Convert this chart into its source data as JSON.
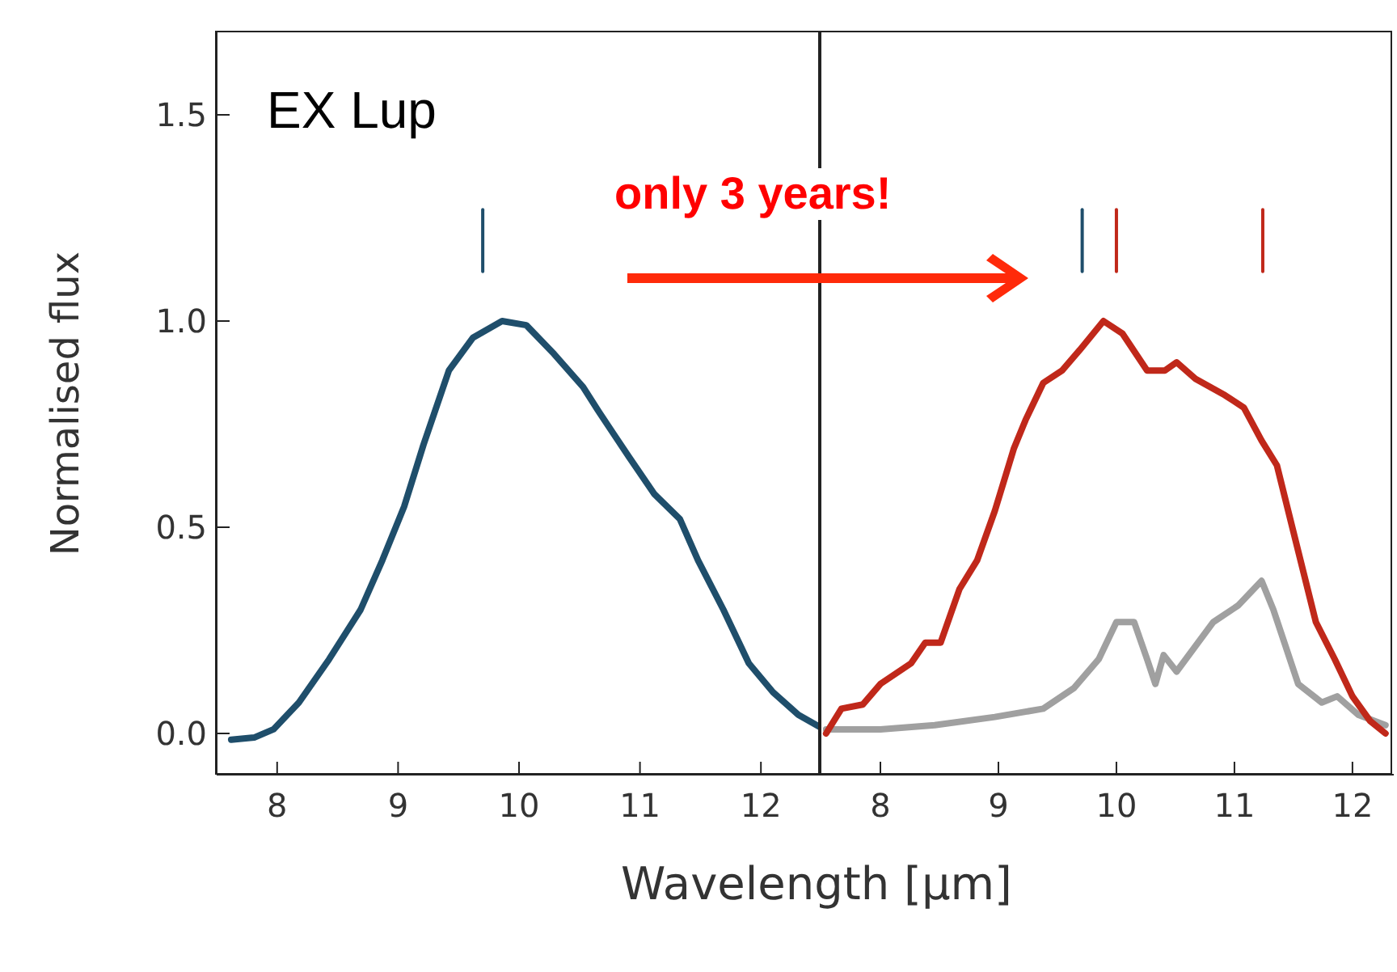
{
  "chart_data": [
    {
      "type": "line",
      "xlabel": "Wavelength [μm]",
      "ylabel": "Normalised flux",
      "annotations": [
        "EX Lup",
        "only 3 years!"
      ],
      "xlim": [
        7.5,
        12.5
      ],
      "xticks": [
        8,
        9,
        10,
        11,
        12
      ],
      "ylim": [
        -0.1,
        1.7
      ],
      "yticks": [
        {
          "value": 0,
          "label": "0.0"
        },
        0.5,
        {
          "value": 1,
          "label": "1.0"
        },
        1.5
      ],
      "grid": false,
      "legend": false,
      "series": [
        {
          "color": "#1f4e6b",
          "x": [
            7.62,
            7.81,
            7.97,
            8.18,
            8.43,
            8.69,
            8.87,
            9.05,
            9.21,
            9.42,
            9.62,
            9.86,
            10.06,
            10.29,
            10.53,
            10.66,
            10.91,
            11.12,
            11.33,
            11.48,
            11.69,
            11.9,
            12.1,
            12.31,
            12.49
          ],
          "values": [
            -0.015,
            -0.01,
            0.01,
            0.075,
            0.18,
            0.3,
            0.42,
            0.55,
            0.7,
            0.88,
            0.96,
            1.0,
            0.99,
            0.92,
            0.84,
            0.78,
            0.67,
            0.58,
            0.52,
            0.42,
            0.3,
            0.17,
            0.1,
            0.045,
            0.015
          ]
        },
        {
          "color": "#1f4e6b",
          "x": [
            9.7,
            9.7
          ],
          "values": [
            1.12,
            1.27
          ]
        }
      ]
    },
    {
      "type": "line",
      "xlim": [
        7.5,
        12.35
      ],
      "xticks": [
        8,
        9,
        10,
        11,
        12
      ],
      "ylim": [
        -0.1,
        1.7
      ],
      "yticks": [
        {
          "value": 0,
          "label": null
        },
        {
          "value": 0.5,
          "label": null
        },
        {
          "value": 1,
          "label": null
        },
        {
          "value": 1.5,
          "label": null
        }
      ],
      "tick_labels": "x",
      "grid": false,
      "legend": false,
      "series": [
        {
          "color": "#a0a0a0",
          "x": [
            7.54,
            8.0,
            8.46,
            8.97,
            9.38,
            9.64,
            9.85,
            10.0,
            10.15,
            10.26,
            10.33,
            10.4,
            10.51,
            10.82,
            11.03,
            11.23,
            11.33,
            11.54,
            11.74,
            11.87,
            12.05,
            12.28
          ],
          "values": [
            0.01,
            0.01,
            0.02,
            0.04,
            0.06,
            0.11,
            0.18,
            0.27,
            0.27,
            0.18,
            0.12,
            0.19,
            0.15,
            0.27,
            0.31,
            0.37,
            0.3,
            0.12,
            0.075,
            0.09,
            0.045,
            0.02
          ]
        },
        {
          "color": "#c0281a",
          "x": [
            7.54,
            7.67,
            7.85,
            8.0,
            8.26,
            8.38,
            8.51,
            8.67,
            8.82,
            8.97,
            9.13,
            9.23,
            9.38,
            9.54,
            9.69,
            9.89,
            10.05,
            10.26,
            10.41,
            10.51,
            10.67,
            10.92,
            11.08,
            11.23,
            11.36,
            11.49,
            11.69,
            11.85,
            12.0,
            12.15,
            12.28
          ],
          "values": [
            0,
            0.06,
            0.07,
            0.12,
            0.17,
            0.22,
            0.22,
            0.35,
            0.42,
            0.54,
            0.69,
            0.76,
            0.85,
            0.88,
            0.93,
            1.0,
            0.97,
            0.88,
            0.88,
            0.9,
            0.86,
            0.82,
            0.79,
            0.71,
            0.65,
            0.5,
            0.27,
            0.18,
            0.09,
            0.03,
            0.0
          ]
        },
        {
          "color": "#1f4e6b",
          "x": [
            9.71,
            9.71
          ],
          "values": [
            1.12,
            1.27
          ]
        },
        {
          "color": "#c0281a",
          "x": [
            10.0,
            10.0
          ],
          "values": [
            1.12,
            1.27
          ]
        },
        {
          "color": "#c0281a",
          "x": [
            11.24,
            11.24
          ],
          "values": [
            1.12,
            1.27
          ]
        }
      ]
    }
  ]
}
